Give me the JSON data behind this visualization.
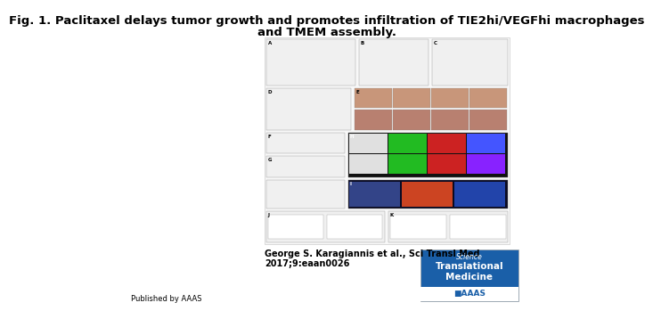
{
  "title_line1": "Fig. 1. Paclitaxel delays tumor growth and promotes infiltration of TIE2hi/VEGFhi macrophages",
  "title_line2": "and TMEM assembly.",
  "title_fontsize": 9.5,
  "title_bold": true,
  "author_line1": "George S. Karagiannis et al., Sci Transl Med",
  "author_line2": "2017;9:eaan0026",
  "author_fontsize": 7.0,
  "published_text": "Published by AAAS",
  "published_fontsize": 6.0,
  "background_color": "#ffffff",
  "logo_bg": "#1a5fa8",
  "logo_fontsize": 6
}
